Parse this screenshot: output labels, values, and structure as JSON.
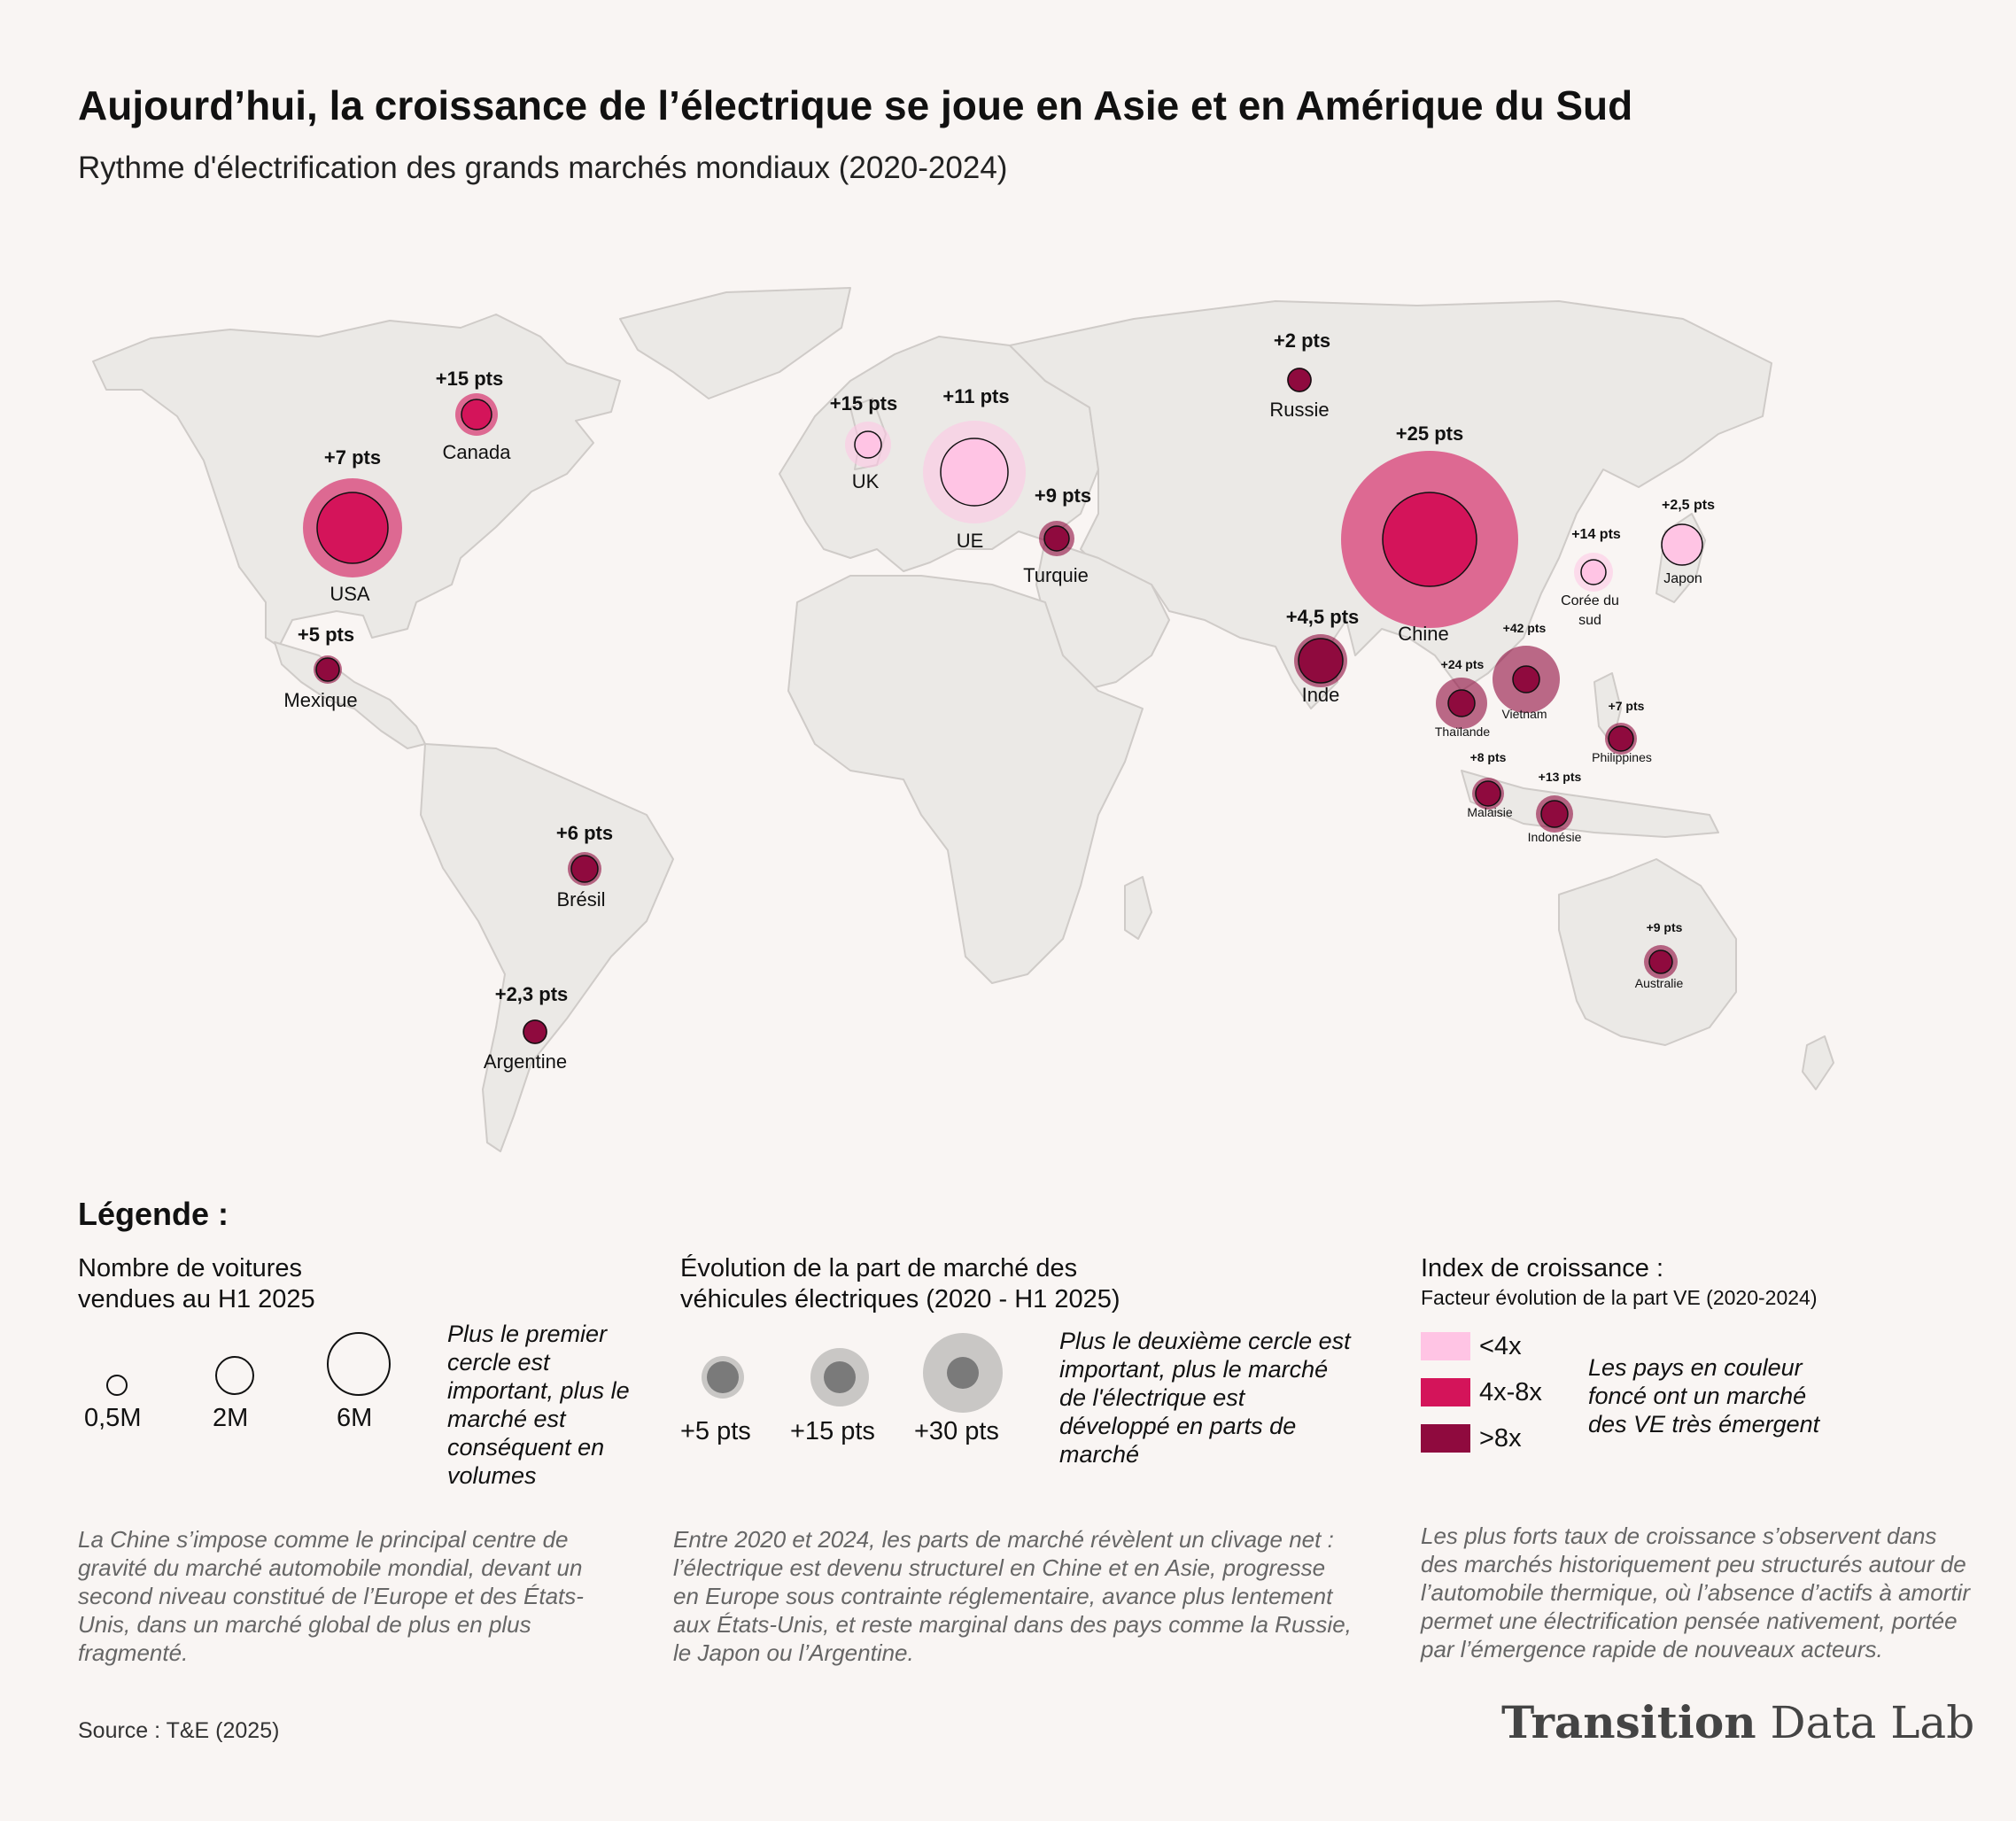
{
  "title": "Aujourd’hui, la croissance de l’électrique se joue en Asie et en Amérique du Sud",
  "subtitle": "Rythme d'électrification des grands marchés mondiaux (2020-2024)",
  "colors": {
    "background": "#f9f5f3",
    "land": "#ebe9e6",
    "border": "#cfcbc8",
    "low": "#ffc4e4",
    "mid": "#d4145a",
    "high": "#8f0a3e"
  },
  "markets": [
    {
      "name": "Canada",
      "pts": "+15 pts",
      "growth": "4x-8x"
    },
    {
      "name": "USA",
      "pts": "+7 pts",
      "growth": "4x-8x"
    },
    {
      "name": "Mexique",
      "pts": "+5 pts",
      "growth": ">8x"
    },
    {
      "name": "Brésil",
      "pts": "+6 pts",
      "growth": ">8x"
    },
    {
      "name": "Argentine",
      "pts": "+2,3 pts",
      "growth": ">8x"
    },
    {
      "name": "UK",
      "pts": "+15 pts",
      "growth": "<4x"
    },
    {
      "name": "UE",
      "pts": "+11 pts",
      "growth": "<4x"
    },
    {
      "name": "Turquie",
      "pts": "+9 pts",
      "growth": ">8x"
    },
    {
      "name": "Russie",
      "pts": "+2 pts",
      "growth": ">8x"
    },
    {
      "name": "Chine",
      "pts": "+25 pts",
      "growth": "4x-8x"
    },
    {
      "name": "Japon",
      "pts": "+2,5 pts",
      "growth": "<4x"
    },
    {
      "name": "Corée du sud",
      "pts": "+14 pts",
      "growth": "<4x"
    },
    {
      "name": "Inde",
      "pts": "+4,5 pts",
      "growth": ">8x"
    },
    {
      "name": "Thaïlande",
      "pts": "+24 pts",
      "growth": ">8x"
    },
    {
      "name": "Vietnam",
      "pts": "+42 pts",
      "growth": ">8x"
    },
    {
      "name": "Philippines",
      "pts": "+7 pts",
      "growth": ">8x"
    },
    {
      "name": "Malaisie",
      "pts": "+8 pts",
      "growth": ">8x"
    },
    {
      "name": "Indonésie",
      "pts": "+13 pts",
      "growth": ">8x"
    },
    {
      "name": "Australie",
      "pts": "+9 pts",
      "growth": ">8x"
    }
  ],
  "legend": {
    "title": "Légende :",
    "size": {
      "heading_line1": "Nombre de voitures",
      "heading_line2": "vendues au H1 2025",
      "items": [
        "0,5M",
        "2M",
        "6M"
      ],
      "note": "Plus le premier cercle est important, plus le marché est conséquent en volumes"
    },
    "share": {
      "heading_line1": "Évolution de la part de marché des",
      "heading_line2": "véhicules électriques (2020 - H1 2025)",
      "items": [
        "+5 pts",
        "+15 pts",
        "+30 pts"
      ],
      "note": "Plus le deuxième cercle est important, plus le marché de l'électrique est développé en parts de marché"
    },
    "growth": {
      "heading": "Index de croissance :",
      "subheading": "Facteur évolution de la part VE (2020-2024)",
      "items": [
        "<4x",
        "4x-8x",
        ">8x"
      ],
      "note": "Les pays en couleur foncé ont un marché des VE très émergent"
    }
  },
  "captions": {
    "left": "La Chine s’impose comme le principal centre de gravité du marché automobile mondial, devant un second niveau constitué de l’Europe et des États-Unis, dans un marché global de plus en plus fragmenté.",
    "middle": "Entre 2020 et 2024, les parts de marché révèlent un clivage net : l’électrique est devenu structurel en Chine et en Asie, progresse en Europe sous contrainte réglementaire, avance plus lentement aux États-Unis, et reste marginal dans des pays comme la Russie, le Japon ou l’Argentine.",
    "right": "Les plus forts taux de croissance s’observent dans des marchés historiquement peu structurés autour de l’automobile thermique, où l’absence d’actifs à amortir permet une électrification pensée nativement, portée par l’émergence rapide de nouveaux acteurs."
  },
  "source": "Source : T&E (2025)",
  "brand": {
    "bold": "Transition",
    "regular": "Data Lab"
  }
}
